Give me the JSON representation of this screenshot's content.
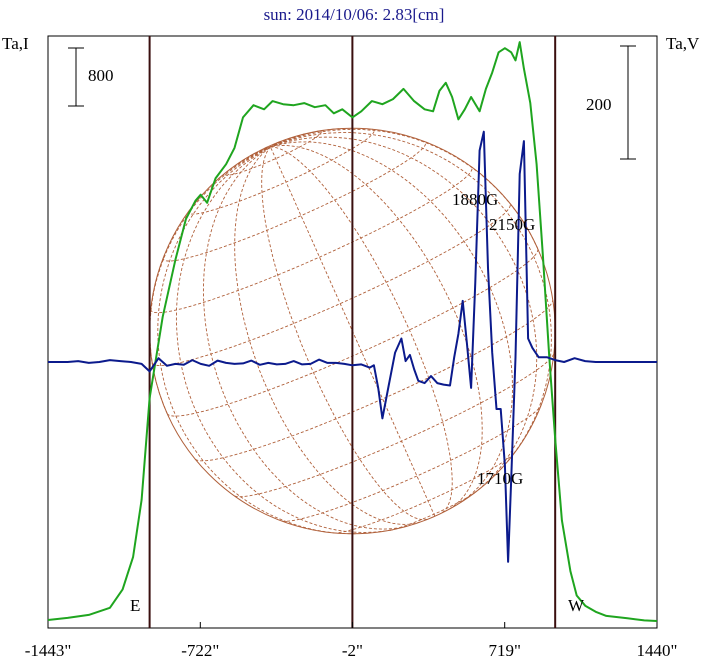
{
  "chart_data": {
    "type": "line",
    "title": "sun: 2014/10/06: 2.83[cm]",
    "left_axis_label": "Ta,I",
    "right_axis_label": "Ta,V",
    "left_scale_bar": "800",
    "right_scale_bar": "200",
    "x_tick_labels": [
      "-1443\"",
      "-722\"",
      "-2\"",
      "719\"",
      "1440\""
    ],
    "x_ticks": [
      -1443,
      -722,
      -2,
      719,
      1440
    ],
    "xlim": [
      -1443,
      1440
    ],
    "limb_labels": {
      "east": "E",
      "west": "W"
    },
    "vertical_lines": [
      -962,
      -2,
      958
    ],
    "annotations": [
      {
        "text": "1880G",
        "x": 485,
        "y": 128
      },
      {
        "text": "2150G",
        "x": 618,
        "y": 10
      },
      {
        "text": "1710G",
        "x": 740,
        "y": -102
      }
    ],
    "series": [
      {
        "color": "#1fa51f",
        "y_range": [
          0,
          2880
        ],
        "x": [
          -1443,
          -1350,
          -1250,
          -1150,
          -1090,
          -1040,
          -1000,
          -962,
          -900,
          -840,
          -790,
          -745,
          -720,
          -690,
          -650,
          -600,
          -560,
          -520,
          -470,
          -420,
          -380,
          -330,
          -280,
          -230,
          -180,
          -130,
          -90,
          -50,
          -2,
          40,
          90,
          140,
          190,
          240,
          290,
          340,
          380,
          410,
          440,
          470,
          500,
          530,
          560,
          600,
          630,
          660,
          690,
          720,
          750,
          770,
          790,
          810,
          840,
          870,
          900,
          930,
          958,
          990,
          1030,
          1060,
          1100,
          1150,
          1200,
          1300,
          1380,
          1440
        ],
        "y": [
          10,
          20,
          35,
          70,
          160,
          320,
          600,
          1100,
          1500,
          1780,
          1980,
          2070,
          2100,
          2060,
          2180,
          2250,
          2330,
          2480,
          2540,
          2520,
          2560,
          2545,
          2540,
          2550,
          2530,
          2540,
          2500,
          2520,
          2480,
          2510,
          2560,
          2545,
          2570,
          2620,
          2560,
          2520,
          2510,
          2610,
          2650,
          2580,
          2470,
          2520,
          2580,
          2510,
          2620,
          2700,
          2800,
          2820,
          2800,
          2760,
          2850,
          2720,
          2550,
          2250,
          1800,
          1300,
          900,
          500,
          250,
          130,
          80,
          50,
          30,
          18,
          8,
          5
        ]
      },
      {
        "color": "#0b1a8c",
        "y_range": [
          -600,
          600
        ],
        "x": [
          -1443,
          -1350,
          -1300,
          -1250,
          -1200,
          -1150,
          -1100,
          -1050,
          -1000,
          -962,
          -920,
          -880,
          -840,
          -800,
          -760,
          -720,
          -680,
          -640,
          -600,
          -560,
          -520,
          -480,
          -440,
          -400,
          -360,
          -320,
          -280,
          -240,
          -200,
          -160,
          -120,
          -80,
          -40,
          -2,
          40,
          80,
          100,
          120,
          140,
          170,
          200,
          230,
          250,
          270,
          290,
          310,
          340,
          370,
          400,
          430,
          460,
          480,
          500,
          520,
          540,
          560,
          580,
          600,
          620,
          640,
          660,
          680,
          700,
          720,
          735,
          750,
          770,
          790,
          810,
          830,
          850,
          880,
          920,
          958,
          1000,
          1050,
          1100,
          1150,
          1200,
          1300,
          1380,
          1440
        ],
        "y": [
          0,
          0,
          2,
          -2,
          0,
          4,
          2,
          0,
          -4,
          -20,
          8,
          -8,
          -4,
          -6,
          4,
          -4,
          -8,
          3,
          -2,
          -4,
          -3,
          3,
          -6,
          -2,
          -5,
          -4,
          2,
          -5,
          -4,
          5,
          -2,
          -2,
          -4,
          -7,
          -5,
          -12,
          -7,
          -55,
          -120,
          -50,
          20,
          50,
          2,
          15,
          -15,
          -40,
          -45,
          -30,
          -45,
          -48,
          -50,
          10,
          60,
          130,
          40,
          -55,
          170,
          450,
          490,
          200,
          20,
          -100,
          -100,
          -220,
          -425,
          -250,
          10,
          400,
          470,
          50,
          30,
          10,
          10,
          4,
          0,
          8,
          2,
          0,
          0,
          0,
          0,
          0
        ]
      }
    ]
  }
}
